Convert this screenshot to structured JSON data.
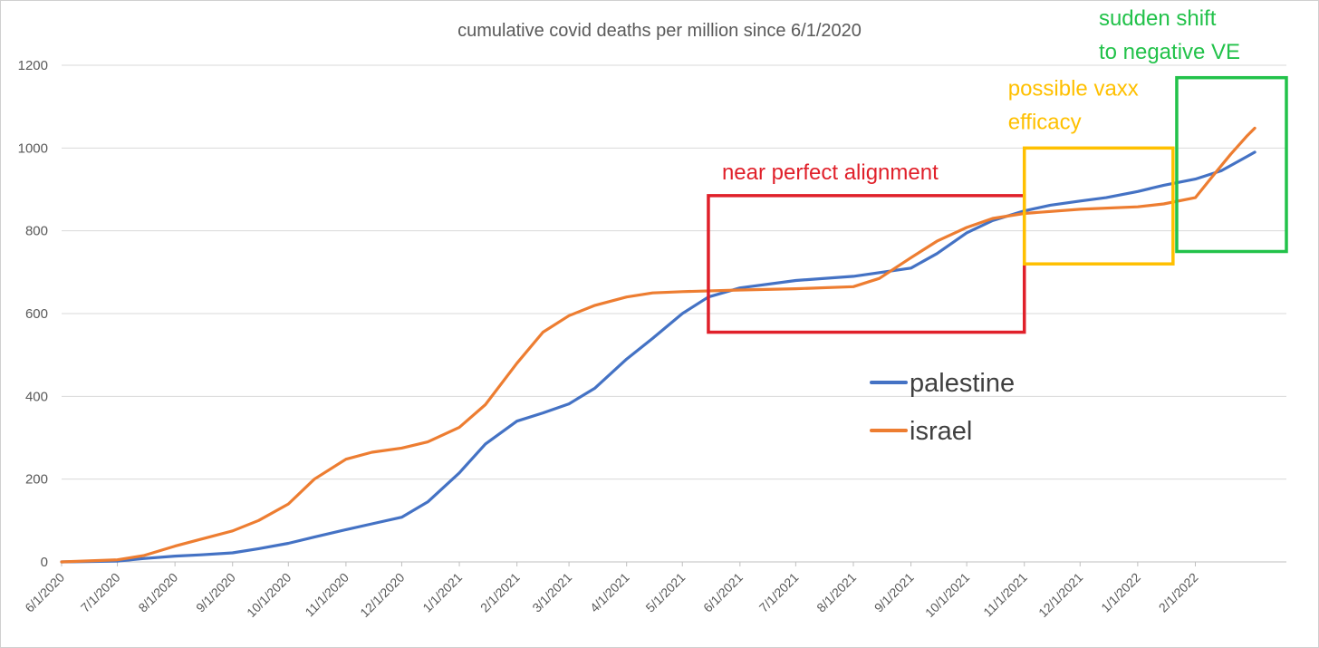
{
  "chart_data": {
    "type": "line",
    "title": "cumulative covid deaths per million since 6/1/2020",
    "xlabel": "",
    "ylabel": "",
    "ylim": [
      0,
      1200
    ],
    "yticks": [
      "0",
      "200",
      "400",
      "600",
      "800",
      "1000",
      "1200"
    ],
    "xtick_labels": [
      "6/1/2020",
      "7/1/2020",
      "8/1/2020",
      "9/1/2020",
      "10/1/2020",
      "11/1/2020",
      "12/1/2020",
      "1/1/2021",
      "2/1/2021",
      "3/1/2021",
      "4/1/2021",
      "5/1/2021",
      "6/1/2021",
      "7/1/2021",
      "8/1/2021",
      "9/1/2021",
      "10/1/2021",
      "11/1/2021",
      "12/1/2021",
      "1/1/2022",
      "2/1/2022"
    ],
    "xlim": [
      "6/1/2020",
      "3/22/2022"
    ],
    "grid": "horizontal",
    "legend_position": "center-right",
    "series": [
      {
        "name": "palestine",
        "color": "#4472C4",
        "points": [
          [
            "6/1/2020",
            0
          ],
          [
            "7/1/2020",
            2
          ],
          [
            "7/15/2020",
            8
          ],
          [
            "8/1/2020",
            14
          ],
          [
            "8/15/2020",
            17
          ],
          [
            "9/1/2020",
            22
          ],
          [
            "9/15/2020",
            32
          ],
          [
            "10/1/2020",
            45
          ],
          [
            "10/15/2020",
            60
          ],
          [
            "11/1/2020",
            78
          ],
          [
            "11/15/2020",
            92
          ],
          [
            "12/1/2020",
            108
          ],
          [
            "12/15/2020",
            145
          ],
          [
            "1/1/2021",
            215
          ],
          [
            "1/15/2021",
            285
          ],
          [
            "2/1/2021",
            340
          ],
          [
            "2/15/2021",
            360
          ],
          [
            "3/1/2021",
            382
          ],
          [
            "3/15/2021",
            420
          ],
          [
            "4/1/2021",
            490
          ],
          [
            "4/15/2021",
            540
          ],
          [
            "5/1/2021",
            600
          ],
          [
            "5/15/2021",
            640
          ],
          [
            "6/1/2021",
            662
          ],
          [
            "7/1/2021",
            680
          ],
          [
            "8/1/2021",
            690
          ],
          [
            "9/1/2021",
            710
          ],
          [
            "9/15/2021",
            745
          ],
          [
            "10/1/2021",
            795
          ],
          [
            "10/15/2021",
            825
          ],
          [
            "11/1/2021",
            848
          ],
          [
            "11/15/2021",
            862
          ],
          [
            "12/1/2021",
            872
          ],
          [
            "12/15/2021",
            880
          ],
          [
            "1/1/2022",
            895
          ],
          [
            "1/15/2022",
            910
          ],
          [
            "2/1/2022",
            925
          ],
          [
            "2/15/2022",
            945
          ],
          [
            "3/1/2022",
            980
          ],
          [
            "3/5/2022",
            990
          ]
        ]
      },
      {
        "name": "israel",
        "color": "#ED7D31",
        "points": [
          [
            "6/1/2020",
            0
          ],
          [
            "7/1/2020",
            5
          ],
          [
            "7/15/2020",
            15
          ],
          [
            "8/1/2020",
            38
          ],
          [
            "8/15/2020",
            55
          ],
          [
            "9/1/2020",
            75
          ],
          [
            "9/15/2020",
            100
          ],
          [
            "10/1/2020",
            140
          ],
          [
            "10/15/2020",
            200
          ],
          [
            "11/1/2020",
            248
          ],
          [
            "11/15/2020",
            265
          ],
          [
            "12/1/2020",
            275
          ],
          [
            "12/15/2020",
            290
          ],
          [
            "1/1/2021",
            325
          ],
          [
            "1/15/2021",
            380
          ],
          [
            "2/1/2021",
            480
          ],
          [
            "2/15/2021",
            555
          ],
          [
            "3/1/2021",
            595
          ],
          [
            "3/15/2021",
            620
          ],
          [
            "4/1/2021",
            640
          ],
          [
            "4/15/2021",
            650
          ],
          [
            "5/1/2021",
            653
          ],
          [
            "6/1/2021",
            657
          ],
          [
            "7/1/2021",
            660
          ],
          [
            "8/1/2021",
            665
          ],
          [
            "8/15/2021",
            685
          ],
          [
            "9/1/2021",
            735
          ],
          [
            "9/15/2021",
            775
          ],
          [
            "10/1/2021",
            808
          ],
          [
            "10/15/2021",
            830
          ],
          [
            "11/1/2021",
            842
          ],
          [
            "12/1/2021",
            852
          ],
          [
            "1/1/2022",
            858
          ],
          [
            "1/15/2022",
            865
          ],
          [
            "2/1/2022",
            880
          ],
          [
            "2/10/2022",
            930
          ],
          [
            "2/20/2022",
            985
          ],
          [
            "3/1/2022",
            1030
          ],
          [
            "3/5/2022",
            1048
          ]
        ]
      }
    ],
    "annotations": [
      {
        "text_lines": [
          "near perfect alignment"
        ],
        "color": "#E0202A",
        "box_x": [
          "5/15/2021",
          "11/1/2021"
        ],
        "box_y": [
          555,
          885
        ]
      },
      {
        "text_lines": [
          "possible vaxx",
          "efficacy"
        ],
        "color": "#FFC000",
        "box_x": [
          "11/1/2021",
          "1/20/2022"
        ],
        "box_y": [
          720,
          1000
        ]
      },
      {
        "text_lines": [
          "sudden shift",
          "to negative VE"
        ],
        "color": "#22C24A",
        "box_x": [
          "1/22/2022",
          "3/22/2022"
        ],
        "box_y": [
          750,
          1170
        ]
      }
    ]
  }
}
